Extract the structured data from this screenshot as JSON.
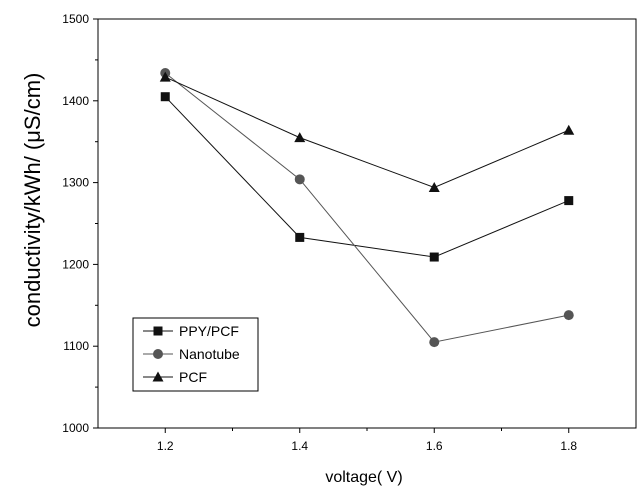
{
  "chart_data": {
    "type": "line",
    "title": "",
    "xlabel": "voltage(  V)",
    "ylabel": "conductivity/kWh/ (μS/cm)",
    "xlim": [
      1.1,
      1.9
    ],
    "ylim": [
      1000,
      1500
    ],
    "x_ticks": [
      1.2,
      1.4,
      1.6,
      1.8
    ],
    "x_tick_labels": [
      "1.2",
      "1.4",
      "1.6",
      "1.8"
    ],
    "y_ticks": [
      1000,
      1100,
      1200,
      1300,
      1400,
      1500
    ],
    "y_tick_labels": [
      "1000",
      "1100",
      "1200",
      "1300",
      "1400",
      "1500"
    ],
    "x": [
      1.2,
      1.4,
      1.6,
      1.8
    ],
    "grid": false,
    "legend_position": "bottom-left",
    "series": [
      {
        "name": "PPY/PCF",
        "marker": "square",
        "color": "#111111",
        "values": [
          1405,
          1233,
          1209,
          1278
        ]
      },
      {
        "name": "Nanotube",
        "marker": "circle",
        "color": "#555555",
        "values": [
          1434,
          1304,
          1105,
          1138
        ]
      },
      {
        "name": "PCF",
        "marker": "triangle",
        "color": "#111111",
        "values": [
          1429,
          1355,
          1294,
          1364
        ]
      }
    ]
  }
}
